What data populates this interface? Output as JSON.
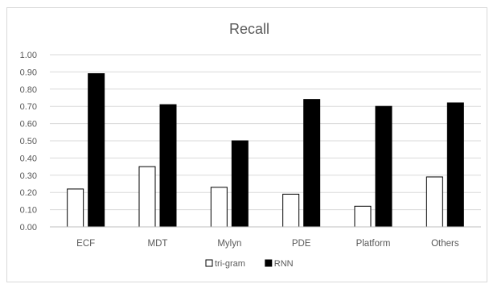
{
  "chart_data": {
    "type": "bar",
    "title": "Recall",
    "categories": [
      "ECF",
      "MDT",
      "Mylyn",
      "PDE",
      "Platform",
      "Others"
    ],
    "series": [
      {
        "name": "tri-gram",
        "values": [
          0.22,
          0.35,
          0.23,
          0.19,
          0.12,
          0.29
        ],
        "color": "#ffffff",
        "stroke": "#000000"
      },
      {
        "name": "RNN",
        "values": [
          0.89,
          0.71,
          0.5,
          0.74,
          0.7,
          0.72
        ],
        "color": "#000000",
        "stroke": "#000000"
      }
    ],
    "ylim": [
      0,
      1.0
    ],
    "yticks": [
      "0.00",
      "0.10",
      "0.20",
      "0.30",
      "0.40",
      "0.50",
      "0.60",
      "0.70",
      "0.80",
      "0.90",
      "1.00"
    ],
    "grid": true,
    "legend_position": "bottom"
  }
}
